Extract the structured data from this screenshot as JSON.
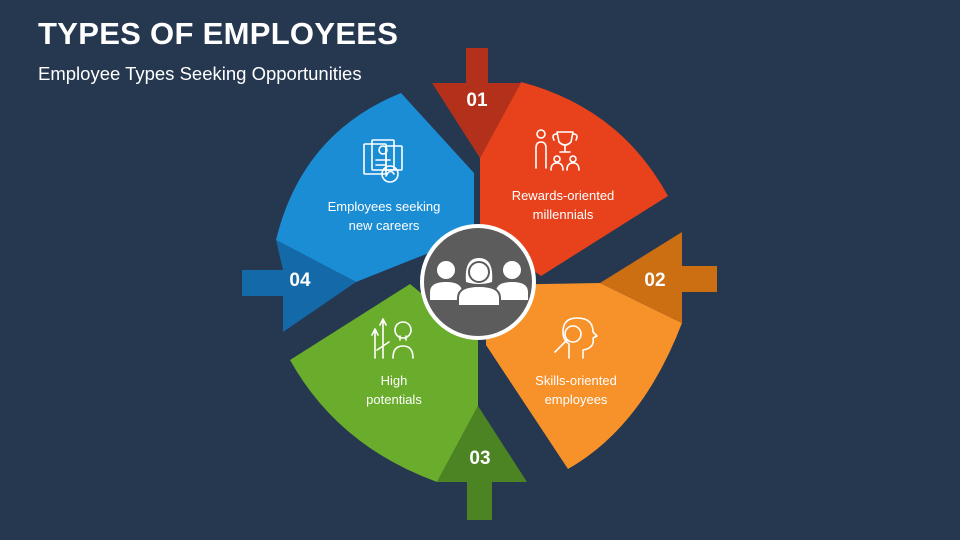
{
  "title": "TYPES OF EMPLOYEES",
  "subtitle": "Employee Types Seeking Opportunities",
  "colors": {
    "background": "#263750",
    "center": "#5c5c5c",
    "segment_01": "#e7421c",
    "segment_01_dark": "#b3311a",
    "segment_02": "#f7922a",
    "segment_02_dark": "#cc6e12",
    "segment_03": "#6aad2c",
    "segment_03_dark": "#4d8423",
    "segment_04": "#1b8dd4",
    "segment_04_dark": "#1469a8"
  },
  "segments": [
    {
      "number": "01",
      "line1": "Rewards-oriented",
      "line2": "millennials",
      "icon": "rewards-trophy-team-icon"
    },
    {
      "number": "02",
      "line1": "Skills-oriented",
      "line2": "employees",
      "icon": "head-magnifier-icon"
    },
    {
      "number": "03",
      "line1": "High",
      "line2": "potentials",
      "icon": "growth-idea-person-icon"
    },
    {
      "number": "04",
      "line1": "Employees seeking",
      "line2": "new careers",
      "icon": "resume-search-icon"
    }
  ],
  "center_icon": "employee-group-icon"
}
